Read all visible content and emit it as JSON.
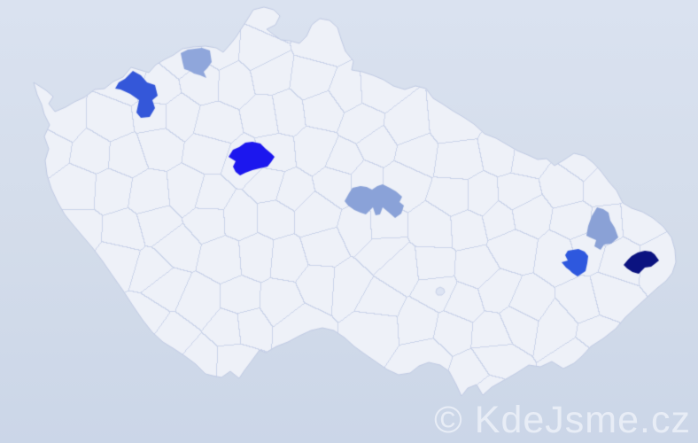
{
  "watermark": {
    "text": "© KdeJsme.cz",
    "color": "#e8edf6"
  },
  "page": {
    "background_top": "#dae2f0",
    "background_bottom": "#cbd6e8"
  },
  "map": {
    "land_color": "#eef1f8",
    "district_border_color": "#c8d1e8",
    "country_outline_color": "#bfc9e2",
    "enclave_color": "#dde4f3",
    "districts": [
      {
        "id": "district-1",
        "color": "#3457d9"
      },
      {
        "id": "district-2",
        "color": "#8fa6db"
      },
      {
        "id": "district-3",
        "color": "#1c17ee"
      },
      {
        "id": "district-4",
        "color": "#8aa2d8"
      },
      {
        "id": "district-5",
        "color": "#8aa1d6"
      },
      {
        "id": "district-6",
        "color": "#2e58de"
      },
      {
        "id": "district-7",
        "color": "#0b1380"
      }
    ]
  }
}
